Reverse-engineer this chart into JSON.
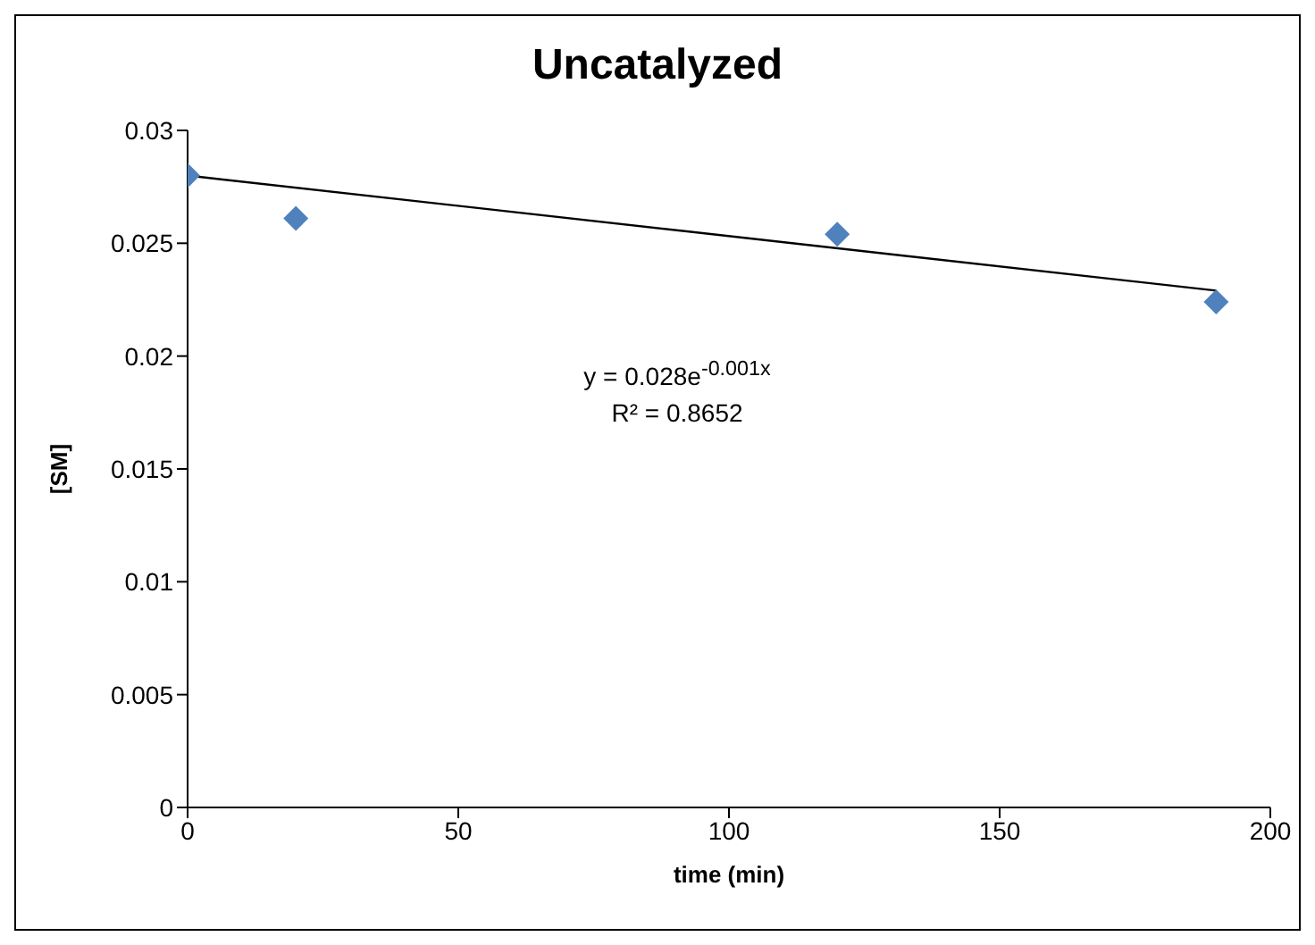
{
  "chart_data": {
    "type": "scatter",
    "title": "Uncatalyzed",
    "xlabel": "time (min)",
    "ylabel": "[SM]",
    "series": [
      {
        "marker": "diamond",
        "color": "#4f81bd",
        "x": [
          0,
          20,
          120,
          190
        ],
        "values": [
          0.028,
          0.0261,
          0.0254,
          0.0224
        ]
      },
      {
        "type": "line",
        "color": "#000000",
        "x": [
          0,
          190
        ],
        "values": [
          0.028,
          0.0229
        ]
      }
    ],
    "annotations": [
      "y = 0.028e$^{-0.001x}$",
      "R² = 0.8652"
    ],
    "xlim": [
      0,
      200
    ],
    "xticks": [
      0,
      50,
      100,
      150,
      200
    ],
    "ylim": [
      0,
      0.03
    ],
    "yticks": [
      0,
      0.005,
      0.01,
      0.015,
      0.02,
      0.025,
      0.03
    ],
    "grid": false,
    "legend": false
  }
}
